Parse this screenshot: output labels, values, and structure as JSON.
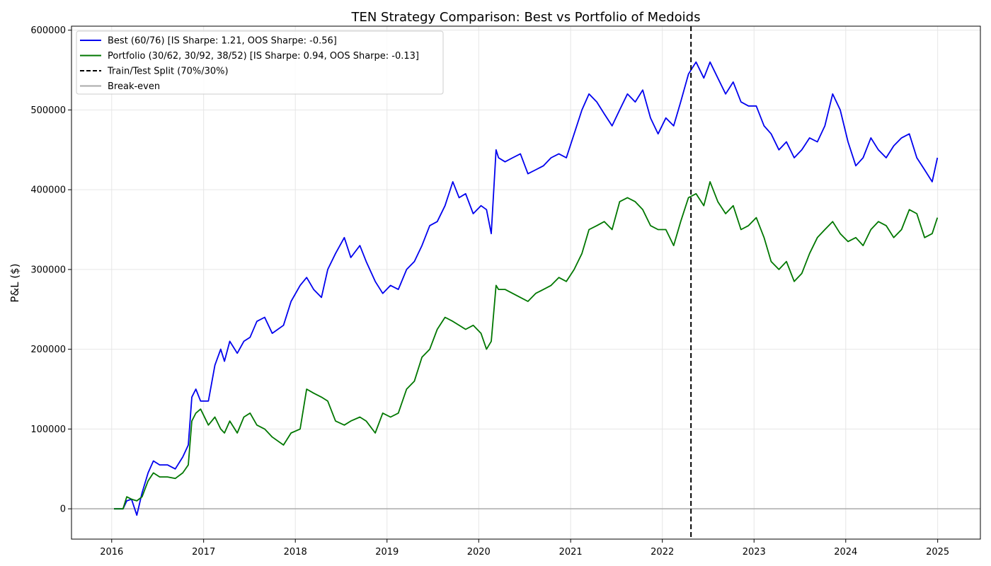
{
  "chart_data": {
    "type": "line",
    "title": "TEN Strategy Comparison: Best vs Portfolio of Medoids",
    "xlabel": "",
    "ylabel": "P&L ($)",
    "x_type": "date",
    "xlim": [
      "2015-07-25",
      "2025-06-20"
    ],
    "ylim": [
      -38000,
      605000
    ],
    "x_ticks": [
      "2016-01-01",
      "2017-01-01",
      "2018-01-01",
      "2019-01-01",
      "2020-01-01",
      "2021-01-01",
      "2022-01-01",
      "2023-01-01",
      "2024-01-01",
      "2025-01-01"
    ],
    "x_tick_labels": [
      "2016",
      "2017",
      "2018",
      "2019",
      "2020",
      "2021",
      "2022",
      "2023",
      "2024",
      "2025"
    ],
    "y_ticks": [
      0,
      100000,
      200000,
      300000,
      400000,
      500000,
      600000
    ],
    "y_tick_labels": [
      "0",
      "100000",
      "200000",
      "300000",
      "400000",
      "500000",
      "600000"
    ],
    "grid": true,
    "legend_position": "top-left",
    "split": {
      "name": "Train/Test Split (70%/30%)",
      "x": "2022-04-25",
      "color": "#000000",
      "style": "dashed"
    },
    "baseline": {
      "name": "Break-even",
      "y": 0,
      "color": "#aaaaaa"
    },
    "series": [
      {
        "name": "Best (60/76) [IS Sharpe: 1.21, OOS Sharpe: -0.56]",
        "color": "#0000ee",
        "x": [
          "2016-01-10",
          "2016-02-15",
          "2016-03-01",
          "2016-03-20",
          "2016-04-10",
          "2016-05-01",
          "2016-05-25",
          "2016-06-15",
          "2016-07-10",
          "2016-08-10",
          "2016-09-10",
          "2016-10-10",
          "2016-11-01",
          "2016-11-15",
          "2016-12-01",
          "2016-12-20",
          "2017-01-20",
          "2017-02-15",
          "2017-03-10",
          "2017-03-25",
          "2017-04-15",
          "2017-05-15",
          "2017-06-10",
          "2017-07-05",
          "2017-08-01",
          "2017-09-01",
          "2017-10-01",
          "2017-11-15",
          "2017-12-15",
          "2018-01-20",
          "2018-02-15",
          "2018-03-15",
          "2018-04-15",
          "2018-05-10",
          "2018-06-10",
          "2018-07-15",
          "2018-08-10",
          "2018-09-15",
          "2018-10-10",
          "2018-11-15",
          "2018-12-15",
          "2019-01-15",
          "2019-02-15",
          "2019-03-20",
          "2019-04-20",
          "2019-05-20",
          "2019-06-20",
          "2019-07-20",
          "2019-08-20",
          "2019-09-20",
          "2019-10-15",
          "2019-11-10",
          "2019-12-10",
          "2020-01-10",
          "2020-02-01",
          "2020-02-20",
          "2020-03-10",
          "2020-03-20",
          "2020-04-15",
          "2020-05-15",
          "2020-06-15",
          "2020-07-15",
          "2020-08-15",
          "2020-09-15",
          "2020-10-15",
          "2020-11-15",
          "2020-12-15",
          "2021-01-15",
          "2021-02-15",
          "2021-03-15",
          "2021-04-15",
          "2021-05-15",
          "2021-06-15",
          "2021-07-15",
          "2021-08-15",
          "2021-09-15",
          "2021-10-15",
          "2021-11-15",
          "2021-12-15",
          "2022-01-15",
          "2022-02-15",
          "2022-03-15",
          "2022-04-15",
          "2022-05-15",
          "2022-06-15",
          "2022-07-10",
          "2022-08-10",
          "2022-09-10",
          "2022-10-10",
          "2022-11-10",
          "2022-12-10",
          "2023-01-10",
          "2023-02-10",
          "2023-03-10",
          "2023-04-10",
          "2023-05-10",
          "2023-06-10",
          "2023-07-10",
          "2023-08-10",
          "2023-09-10",
          "2023-10-10",
          "2023-11-10",
          "2023-12-10",
          "2024-01-10",
          "2024-02-10",
          "2024-03-10",
          "2024-04-10",
          "2024-05-10",
          "2024-06-10",
          "2024-07-10",
          "2024-08-10",
          "2024-09-10",
          "2024-10-10",
          "2024-11-10",
          "2024-12-10",
          "2024-12-31"
        ],
        "y": [
          0,
          0,
          10000,
          12000,
          -8000,
          20000,
          45000,
          60000,
          55000,
          55000,
          50000,
          65000,
          80000,
          140000,
          150000,
          135000,
          135000,
          180000,
          200000,
          185000,
          210000,
          195000,
          210000,
          215000,
          235000,
          240000,
          220000,
          230000,
          260000,
          280000,
          290000,
          275000,
          265000,
          300000,
          320000,
          340000,
          315000,
          330000,
          310000,
          285000,
          270000,
          280000,
          275000,
          300000,
          310000,
          330000,
          355000,
          360000,
          380000,
          410000,
          390000,
          395000,
          370000,
          380000,
          375000,
          345000,
          450000,
          440000,
          435000,
          440000,
          445000,
          420000,
          425000,
          430000,
          440000,
          445000,
          440000,
          470000,
          500000,
          520000,
          510000,
          495000,
          480000,
          500000,
          520000,
          510000,
          525000,
          490000,
          470000,
          490000,
          480000,
          510000,
          545000,
          560000,
          540000,
          560000,
          540000,
          520000,
          535000,
          510000,
          505000,
          505000,
          480000,
          470000,
          450000,
          460000,
          440000,
          450000,
          465000,
          460000,
          480000,
          520000,
          500000,
          460000,
          430000,
          440000,
          465000,
          450000,
          440000,
          455000,
          465000,
          470000,
          440000,
          425000,
          410000,
          440000
        ]
      },
      {
        "name": "Portfolio (30/62, 30/92, 38/52) [IS Sharpe: 0.94, OOS Sharpe: -0.13]",
        "color": "#007700",
        "x": [
          "2016-01-10",
          "2016-02-15",
          "2016-03-01",
          "2016-03-20",
          "2016-04-10",
          "2016-05-01",
          "2016-05-25",
          "2016-06-15",
          "2016-07-10",
          "2016-08-10",
          "2016-09-10",
          "2016-10-10",
          "2016-11-01",
          "2016-11-15",
          "2016-12-01",
          "2016-12-20",
          "2017-01-20",
          "2017-02-15",
          "2017-03-10",
          "2017-03-25",
          "2017-04-15",
          "2017-05-15",
          "2017-06-10",
          "2017-07-05",
          "2017-08-01",
          "2017-09-01",
          "2017-10-01",
          "2017-11-15",
          "2017-12-15",
          "2018-01-20",
          "2018-02-15",
          "2018-03-15",
          "2018-04-15",
          "2018-05-10",
          "2018-06-10",
          "2018-07-15",
          "2018-08-10",
          "2018-09-15",
          "2018-10-10",
          "2018-11-15",
          "2018-12-15",
          "2019-01-15",
          "2019-02-15",
          "2019-03-20",
          "2019-04-20",
          "2019-05-20",
          "2019-06-20",
          "2019-07-20",
          "2019-08-20",
          "2019-09-20",
          "2019-10-15",
          "2019-11-10",
          "2019-12-10",
          "2020-01-10",
          "2020-02-01",
          "2020-02-20",
          "2020-03-10",
          "2020-03-20",
          "2020-04-15",
          "2020-05-15",
          "2020-06-15",
          "2020-07-15",
          "2020-08-15",
          "2020-09-15",
          "2020-10-15",
          "2020-11-15",
          "2020-12-15",
          "2021-01-15",
          "2021-02-15",
          "2021-03-15",
          "2021-04-15",
          "2021-05-15",
          "2021-06-15",
          "2021-07-15",
          "2021-08-15",
          "2021-09-15",
          "2021-10-15",
          "2021-11-15",
          "2021-12-15",
          "2022-01-15",
          "2022-02-15",
          "2022-03-15",
          "2022-04-15",
          "2022-05-15",
          "2022-06-15",
          "2022-07-10",
          "2022-08-10",
          "2022-09-10",
          "2022-10-10",
          "2022-11-10",
          "2022-12-10",
          "2023-01-10",
          "2023-02-10",
          "2023-03-10",
          "2023-04-10",
          "2023-05-10",
          "2023-06-10",
          "2023-07-10",
          "2023-08-10",
          "2023-09-10",
          "2023-10-10",
          "2023-11-10",
          "2023-12-10",
          "2024-01-10",
          "2024-02-10",
          "2024-03-10",
          "2024-04-10",
          "2024-05-10",
          "2024-06-10",
          "2024-07-10",
          "2024-08-10",
          "2024-09-10",
          "2024-10-10",
          "2024-11-10",
          "2024-12-10",
          "2024-12-31"
        ],
        "y": [
          0,
          0,
          15000,
          12000,
          10000,
          15000,
          35000,
          45000,
          40000,
          40000,
          38000,
          45000,
          55000,
          110000,
          120000,
          125000,
          105000,
          115000,
          100000,
          95000,
          110000,
          95000,
          115000,
          120000,
          105000,
          100000,
          90000,
          80000,
          95000,
          100000,
          150000,
          145000,
          140000,
          135000,
          110000,
          105000,
          110000,
          115000,
          110000,
          95000,
          120000,
          115000,
          120000,
          150000,
          160000,
          190000,
          200000,
          225000,
          240000,
          235000,
          230000,
          225000,
          230000,
          220000,
          200000,
          210000,
          280000,
          275000,
          275000,
          270000,
          265000,
          260000,
          270000,
          275000,
          280000,
          290000,
          285000,
          300000,
          320000,
          350000,
          355000,
          360000,
          350000,
          385000,
          390000,
          385000,
          375000,
          355000,
          350000,
          350000,
          330000,
          360000,
          390000,
          395000,
          380000,
          410000,
          385000,
          370000,
          380000,
          350000,
          355000,
          365000,
          340000,
          310000,
          300000,
          310000,
          285000,
          295000,
          320000,
          340000,
          350000,
          360000,
          345000,
          335000,
          340000,
          330000,
          350000,
          360000,
          355000,
          340000,
          350000,
          375000,
          370000,
          340000,
          345000,
          365000
        ]
      }
    ]
  }
}
